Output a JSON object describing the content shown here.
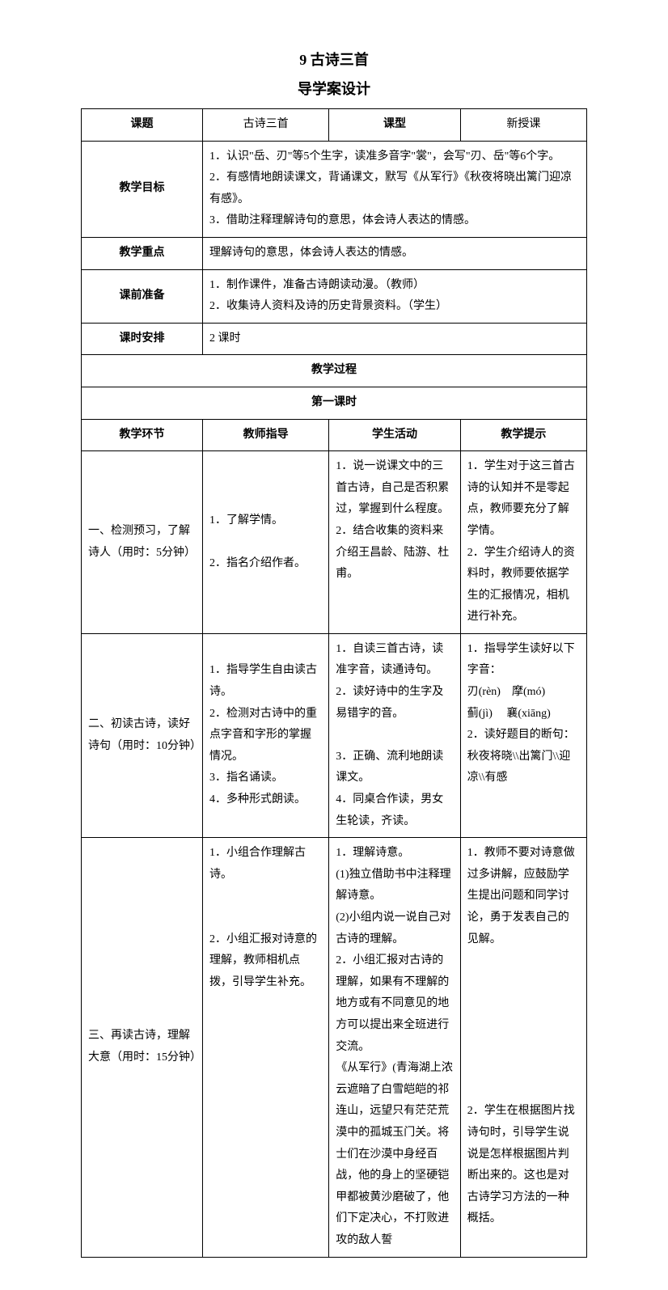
{
  "titles": {
    "main": "9  古诗三首",
    "sub": "导学案设计"
  },
  "row1": {
    "h1": "课题",
    "v1": "古诗三首",
    "h2": "课型",
    "v2": "新授课"
  },
  "row2": {
    "h": "教学目标",
    "v": "1．认识\"岳、刃\"等5个生字，读准多音字\"裳\"，会写\"刃、岳\"等6个字。\n2．有感情地朗读课文，背诵课文，默写《从军行》《秋夜将晓出篱门迎凉有感》。\n3．借助注释理解诗句的意思，体会诗人表达的情感。"
  },
  "row3": {
    "h": "教学重点",
    "v": "理解诗句的意思，体会诗人表达的情感。"
  },
  "row4": {
    "h": "课前准备",
    "v": "1．制作课件，准备古诗朗读动漫。（教师）\n2．收集诗人资料及诗的历史背景资料。（学生）"
  },
  "row5": {
    "h": "课时安排",
    "v": "2 课时"
  },
  "process": "教学过程",
  "lesson1": "第一课时",
  "headers": {
    "c1": "教学环节",
    "c2": "教师指导",
    "c3": "学生活动",
    "c4": "教学提示"
  },
  "step1": {
    "c1": "一、检测预习，了解诗人（用时：5分钟）",
    "c2": "1．了解学情。\n\n2．指名介绍作者。",
    "c3": "1．说一说课文中的三首古诗，自己是否积累过，掌握到什么程度。\n2．结合收集的资料来介绍王昌龄、陆游、杜甫。",
    "c4": "1．学生对于这三首古诗的认知并不是零起点，教师要充分了解学情。\n2．学生介绍诗人的资料时，教师要依据学生的汇报情况，相机进行补充。"
  },
  "step2": {
    "c1": "二、初读古诗，读好诗句（用时：10分钟）",
    "c2": "1．指导学生自由读古诗。\n2．检测对古诗中的重点字音和字形的掌握情况。\n3．指名诵读。\n4．多种形式朗读。",
    "c3": "1．自读三首古诗，读准字音，读通诗句。\n2．读好诗中的生字及易错字的音。\n\n3．正确、流利地朗读课文。\n4．同桌合作读，男女生轮读，齐读。",
    "c4": "1．指导学生读好以下字音：\n刃(rèn)　摩(mó)\n蓟(jì)　 襄(xiāng)\n2．读好题目的断句：\n秋夜将晓\\\\出篱门\\\\迎凉\\\\有感"
  },
  "step3": {
    "c1": "三、再读古诗，理解大意（用时：15分钟）",
    "c2": "1．小组合作理解古诗。\n\n\n2．小组汇报对诗意的理解，教师相机点拨，引导学生补充。",
    "c3": "1．理解诗意。\n(1)独立借助书中注释理解诗意。\n(2)小组内说一说自己对古诗的理解。\n2．小组汇报对古诗的理解，如果有不理解的地方或有不同意见的地方可以提出来全班进行交流。\n《从军行》(青海湖上浓云遮暗了白雪皑皑的祁连山，远望只有茫茫荒漠中的孤城玉门关。将士们在沙漠中身经百战，他的身上的坚硬铠甲都被黄沙磨破了，他们下定决心，不打败进攻的敌人誓",
    "c4": "1．教师不要对诗意做过多讲解，应鼓励学生提出问题和同学讨论，勇于发表自己的见解。\n\n\n\n\n\n\n\n2．学生在根据图片找诗句时，引导学生说说是怎样根据图片判断出来的。这也是对古诗学习方法的一种概括。"
  }
}
